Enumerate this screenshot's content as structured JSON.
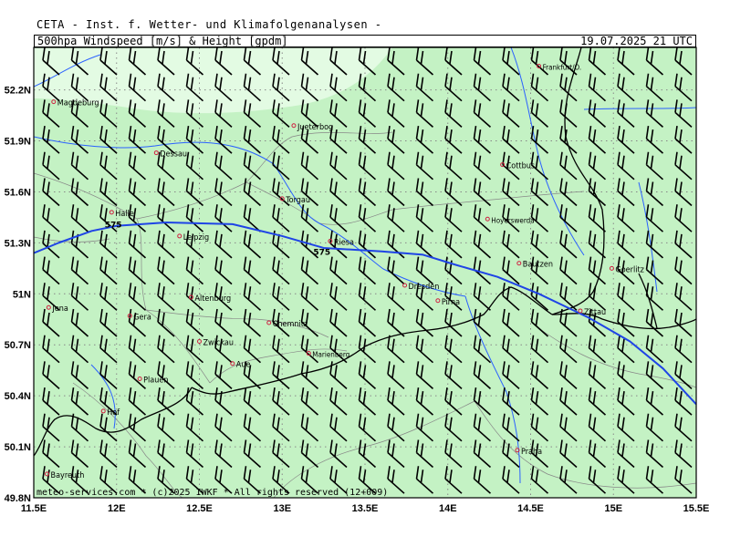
{
  "header": {
    "institute": "CETA - Inst. f. Wetter- und Klimafolgenanalysen -",
    "product": "500hpa Windspeed [m/s] & Height [gpdm]",
    "valid": "19.07.2025 21 UTC"
  },
  "footer": "meteo-services.com * (c)2025 IWKF * All rights reserved (12+009)",
  "colors": {
    "fill_main": "#c4f2c4",
    "fill_light": "#e3fbe3",
    "contour": "#1f44e6",
    "river": "#2a60ff",
    "border": "#000000",
    "admin": "#888888",
    "grid": "#888888",
    "barb": "#000000"
  },
  "axes": {
    "lon_labels": [
      "11.5E",
      "12E",
      "12.5E",
      "13E",
      "13.5E",
      "14E",
      "14.5E",
      "15E",
      "15.5E"
    ],
    "lat_labels": [
      "52.2N",
      "51.9N",
      "51.6N",
      "51.3N",
      "51N",
      "50.7N",
      "50.4N",
      "50.1N",
      "49.8N"
    ],
    "lon_values": [
      11.5,
      12,
      12.5,
      13,
      13.5,
      14,
      14.5,
      15,
      15.5
    ],
    "lat_values": [
      52.2,
      51.9,
      51.6,
      51.3,
      51.0,
      50.7,
      50.4,
      50.1,
      49.8
    ]
  },
  "contours": [
    {
      "label": "575",
      "label_positions_lonlat": [
        [
          11.98,
          51.39
        ],
        [
          13.24,
          51.23
        ]
      ],
      "path_lonlat": [
        [
          11.5,
          51.24
        ],
        [
          11.65,
          51.3
        ],
        [
          11.85,
          51.37
        ],
        [
          12.0,
          51.4
        ],
        [
          12.3,
          51.42
        ],
        [
          12.7,
          51.41
        ],
        [
          13.0,
          51.34
        ],
        [
          13.25,
          51.27
        ],
        [
          13.6,
          51.25
        ],
        [
          13.85,
          51.23
        ],
        [
          14.05,
          51.17
        ],
        [
          14.3,
          51.1
        ],
        [
          14.55,
          51.0
        ],
        [
          14.85,
          50.86
        ],
        [
          15.1,
          50.72
        ],
        [
          15.3,
          50.56
        ],
        [
          15.5,
          50.35
        ]
      ]
    }
  ],
  "cities": [
    {
      "name": "Magdeburg",
      "lon": 11.62,
      "lat": 52.13
    },
    {
      "name": "Jueterbog",
      "lon": 13.07,
      "lat": 51.99
    },
    {
      "name": "Dessau",
      "lon": 12.24,
      "lat": 51.83
    },
    {
      "name": "Cottbus",
      "lon": 14.33,
      "lat": 51.76
    },
    {
      "name": "Torgau",
      "lon": 13.0,
      "lat": 51.56
    },
    {
      "name": "Halle",
      "lon": 11.97,
      "lat": 51.48
    },
    {
      "name": "Hoyerswerda",
      "lon": 14.24,
      "lat": 51.44
    },
    {
      "name": "Leipzig",
      "lon": 12.38,
      "lat": 51.34
    },
    {
      "name": "Riesa",
      "lon": 13.29,
      "lat": 51.31
    },
    {
      "name": "Bautzen",
      "lon": 14.43,
      "lat": 51.18
    },
    {
      "name": "Goerlitz",
      "lon": 14.99,
      "lat": 51.15
    },
    {
      "name": "Dresden",
      "lon": 13.74,
      "lat": 51.05
    },
    {
      "name": "Pirna",
      "lon": 13.94,
      "lat": 50.96
    },
    {
      "name": "Altenburg",
      "lon": 12.45,
      "lat": 50.98
    },
    {
      "name": "Zittau",
      "lon": 14.8,
      "lat": 50.9
    },
    {
      "name": "Jena",
      "lon": 11.59,
      "lat": 50.92
    },
    {
      "name": "Gera",
      "lon": 12.08,
      "lat": 50.87
    },
    {
      "name": "Chemnitz",
      "lon": 12.92,
      "lat": 50.83
    },
    {
      "name": "Zwickau",
      "lon": 12.5,
      "lat": 50.72
    },
    {
      "name": "Marienberg",
      "lon": 13.16,
      "lat": 50.65
    },
    {
      "name": "Aue",
      "lon": 12.7,
      "lat": 50.59
    },
    {
      "name": "Plauen",
      "lon": 12.14,
      "lat": 50.5
    },
    {
      "name": "Hof",
      "lon": 11.92,
      "lat": 50.31
    },
    {
      "name": "Praha",
      "lon": 14.42,
      "lat": 50.08
    },
    {
      "name": "Bayreuth",
      "lon": 11.58,
      "lat": 49.94
    },
    {
      "name": "Frankfurt/O.",
      "lon": 14.55,
      "lat": 52.34
    }
  ]
}
